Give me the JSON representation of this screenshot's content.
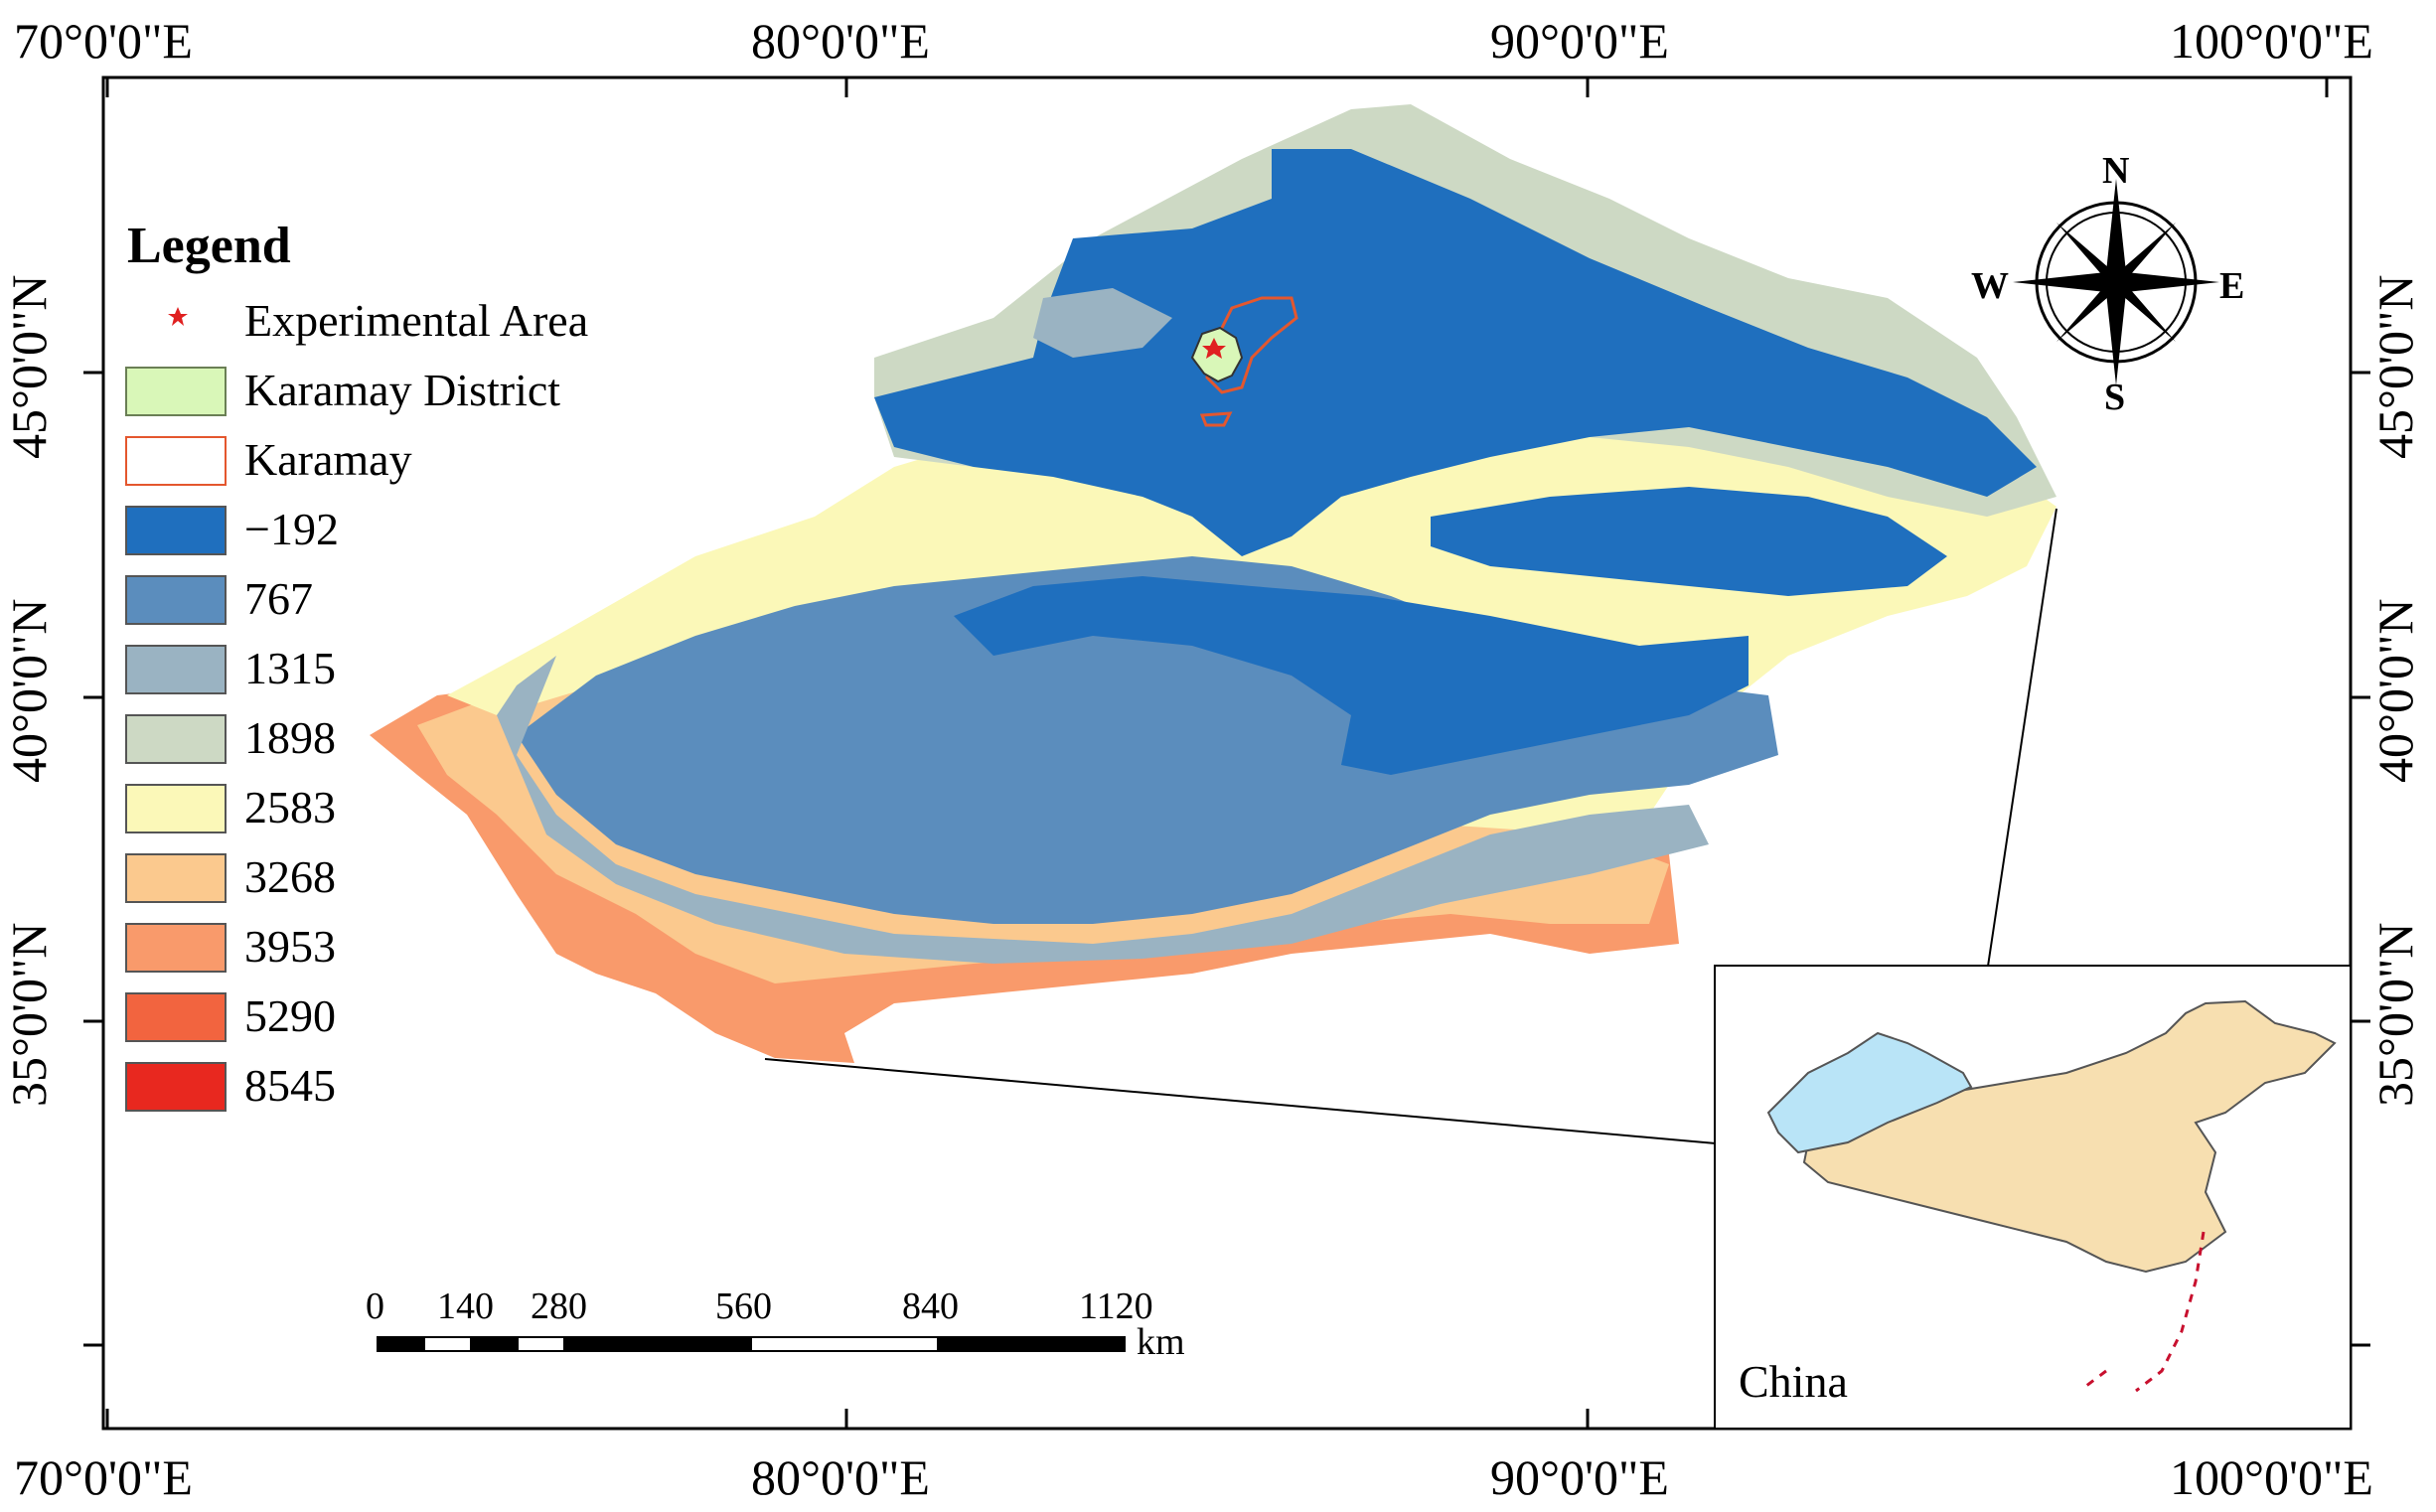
{
  "map": {
    "coordinate_labels": {
      "lon": [
        "70°0'0\"E",
        "80°0'0\"E",
        "90°0'0\"E",
        "100°0'0\"E"
      ],
      "lat": [
        "45°0'0\"N",
        "40°0'0\"N",
        "35°0'0\"N"
      ]
    },
    "legend": {
      "title": "Legend",
      "items": [
        {
          "label": "Experimental Area",
          "color": "#e02020",
          "kind": "point"
        },
        {
          "label": "Karamay District",
          "color": "#d9f7b8",
          "kind": "fill"
        },
        {
          "label": "Karamay",
          "color": "#ffffff",
          "border": "#e4572e",
          "kind": "outline"
        },
        {
          "label": "−192",
          "color": "#1f6fbe",
          "kind": "fill"
        },
        {
          "label": "767",
          "color": "#5b8dbd",
          "kind": "fill"
        },
        {
          "label": "1315",
          "color": "#9ab3c2",
          "kind": "fill"
        },
        {
          "label": "1898",
          "color": "#cdd9c4",
          "kind": "fill"
        },
        {
          "label": "2583",
          "color": "#fbf8b8",
          "kind": "fill"
        },
        {
          "label": "3268",
          "color": "#fbc98e",
          "kind": "fill"
        },
        {
          "label": "3953",
          "color": "#f99a6b",
          "kind": "fill"
        },
        {
          "label": "5290",
          "color": "#f2643f",
          "kind": "fill"
        },
        {
          "label": "8545",
          "color": "#e8281f",
          "kind": "fill"
        }
      ]
    },
    "compass": {
      "n": "N",
      "e": "E",
      "s": "S",
      "w": "W"
    },
    "scale_bar": {
      "ticks": [
        "0",
        "140",
        "280",
        "560",
        "840",
        "1120"
      ],
      "unit": "km"
    },
    "inset": {
      "label": "China",
      "region_color": "#f7dfb0",
      "highlight_color": "#b9e4f7"
    }
  }
}
